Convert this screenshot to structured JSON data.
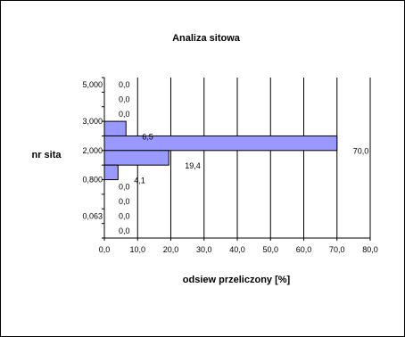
{
  "chart_data": {
    "type": "bar",
    "orientation": "horizontal",
    "title": "Analiza sitowa",
    "xlabel": "odsiew przeliczony [%]",
    "ylabel": "nr sita",
    "xlim": [
      0,
      80
    ],
    "x_ticks": [
      "0,0",
      "10,0",
      "20,0",
      "30,0",
      "40,0",
      "50,0",
      "60,0",
      "70,0",
      "80,0"
    ],
    "y_tick_labels": [
      "5,000",
      "3,000",
      "2,000",
      "0,800",
      "0,063"
    ],
    "grid": "vertical",
    "bars": [
      {
        "value": 0.0,
        "label": "0,0"
      },
      {
        "value": 0.0,
        "label": "0,0"
      },
      {
        "value": 0.0,
        "label": "0,0"
      },
      {
        "value": 6.5,
        "label": "6,5"
      },
      {
        "value": 70.0,
        "label": "70,0"
      },
      {
        "value": 19.4,
        "label": "19,4"
      },
      {
        "value": 4.1,
        "label": "4,1"
      },
      {
        "value": 0.0,
        "label": "0,0"
      },
      {
        "value": 0.0,
        "label": "0,0"
      },
      {
        "value": 0.0,
        "label": "0,0"
      },
      {
        "value": 0.0,
        "label": "0,0"
      }
    ],
    "bar_color": "#9999ff"
  }
}
